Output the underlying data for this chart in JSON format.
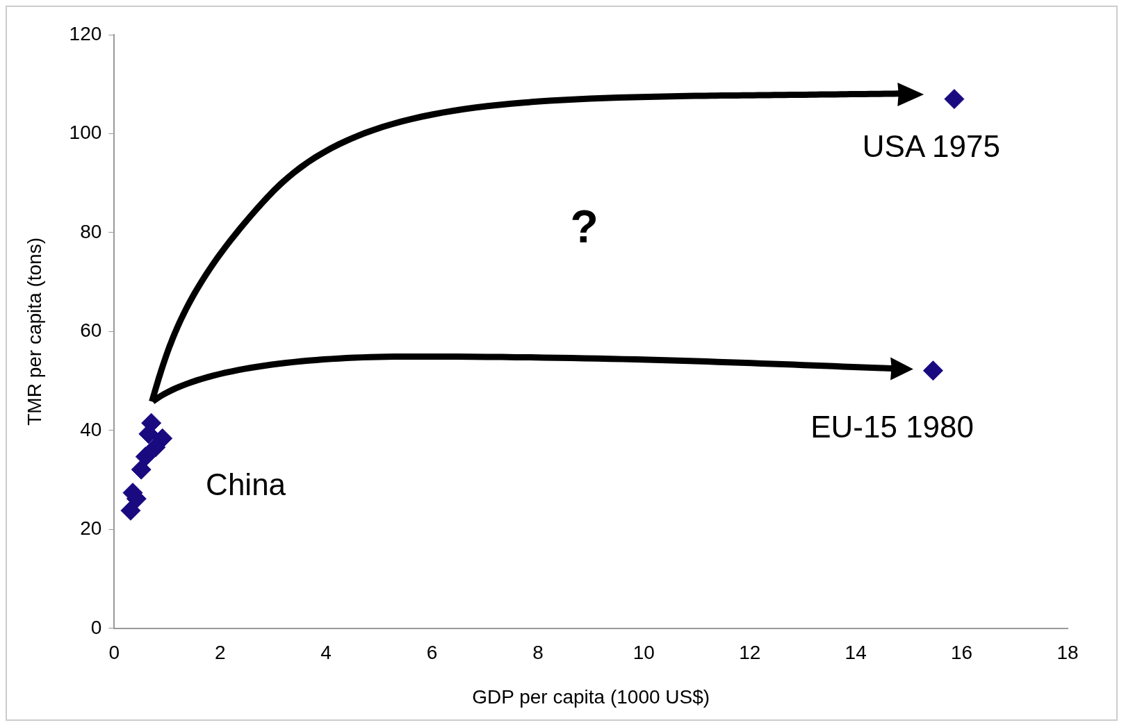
{
  "chart_data": {
    "type": "scatter",
    "xlabel": "GDP per capita (1000 US$)",
    "ylabel": "TMR per capita (tons)",
    "series": [
      {
        "color": "#1a0a80",
        "x": [
          0.7,
          0.65,
          0.91,
          0.78,
          0.59,
          0.51,
          0.35,
          0.42,
          0.31,
          15.86,
          15.46
        ],
        "values": [
          41.5,
          39.3,
          38.4,
          36.6,
          34.7,
          32.1,
          27.4,
          26.2,
          23.8,
          107,
          52.1
        ]
      }
    ],
    "xlim": [
      0,
      18
    ],
    "xticks": [
      0,
      2,
      4,
      6,
      8,
      10,
      12,
      14,
      16,
      18
    ],
    "ylim": [
      0,
      120
    ],
    "yticks": [
      0,
      20,
      40,
      60,
      80,
      100,
      120
    ],
    "grid": false,
    "legend": false,
    "marker": "diamond",
    "annotations": [
      "China",
      "USA 1975",
      "EU-15 1980",
      "?"
    ]
  }
}
